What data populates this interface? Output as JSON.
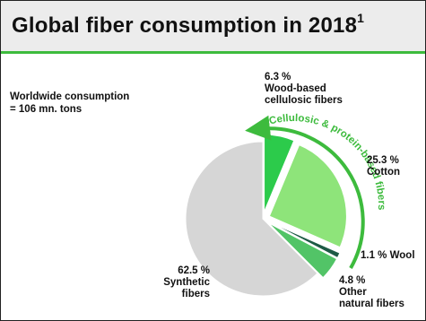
{
  "header": {
    "title": "Global fiber consumption in 2018",
    "footnote_marker": "1"
  },
  "summary": {
    "line1": "Worldwide consumption",
    "line2": "= 106 mn. tons"
  },
  "colors": {
    "title_bar_bg": "#ececec",
    "accent_green": "#3dbb3d",
    "wood": "#2ccb4b",
    "cotton": "#8ee47a",
    "wool": "#1d5a45",
    "other_natural": "#52c467",
    "synthetic": "#d6d6d6"
  },
  "chart_data": {
    "type": "pie",
    "unit": "%",
    "slices": [
      {
        "name_line1": "Wood-based",
        "name_line2": "cellulosic fibers",
        "value": 6.3,
        "label": "6.3 %",
        "color": "#2ccb4b",
        "exploded": true
      },
      {
        "name_line1": "Cotton",
        "name_line2": "",
        "value": 25.3,
        "label": "25.3 %",
        "color": "#8ee47a",
        "exploded": true
      },
      {
        "name_line1": "Wool",
        "name_line2": "",
        "value": 1.1,
        "label": "1.1 %",
        "color": "#1d5a45",
        "exploded": true
      },
      {
        "name_line1": "Other",
        "name_line2": "natural fibers",
        "value": 4.8,
        "label": "4.8 %",
        "color": "#52c467",
        "exploded": true
      },
      {
        "name_line1": "Synthetic",
        "name_line2": "fibers",
        "value": 62.5,
        "label": "62.5 %",
        "color": "#d6d6d6",
        "exploded": false
      }
    ],
    "annotation": "Cellulosic & protein-based fibers"
  }
}
